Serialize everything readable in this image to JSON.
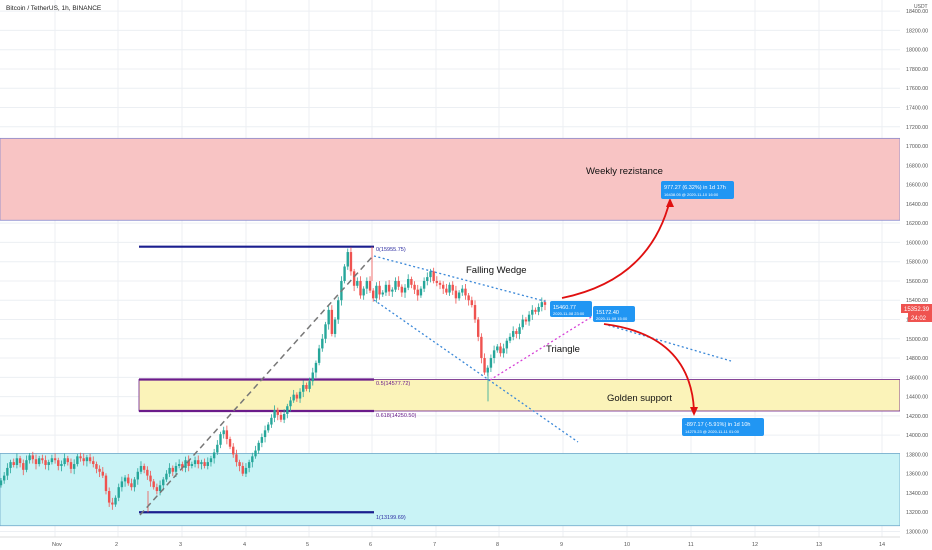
{
  "header": {
    "title": "Bitcoin / TetherUS, 1h, BINANCE"
  },
  "colors": {
    "up": "#26a69a",
    "down": "#ef5350",
    "grid": "#eceff3",
    "resistance_zone": "#f8c4c4",
    "support_zone": "#fbf3b9",
    "bottom_zone": "#c9f3f6",
    "fib_line": "#1b1f8f",
    "fib_purple": "#6a1b8a",
    "wedge": "#3b88d8",
    "triangle": "#d63ed6",
    "projection": "#e01010",
    "callout": "#2196f3",
    "dashed": "#777777",
    "price_tag": "#ef5350"
  },
  "x_axis": {
    "labels": [
      "Nov",
      "2",
      "3",
      "4",
      "5",
      "6",
      "7",
      "8",
      "9",
      "10",
      "11",
      "12",
      "13",
      "14"
    ]
  },
  "y_axis": {
    "unit": "USDT",
    "labels": [
      "18400.00",
      "18200.00",
      "18000.00",
      "17800.00",
      "17600.00",
      "17400.00",
      "17200.00",
      "17000.00",
      "16800.00",
      "16600.00",
      "16400.00",
      "16200.00",
      "16000.00",
      "15800.00",
      "15600.00",
      "15400.00",
      "15200.00",
      "15000.00",
      "14800.00",
      "14600.00",
      "14400.00",
      "14200.00",
      "14000.00",
      "13800.00",
      "13600.00",
      "13400.00",
      "13200.00",
      "13000.00"
    ],
    "current_price": "15352.39",
    "countdown": "24:02"
  },
  "annotations": {
    "weekly_resistance": "Weekly rezistance",
    "falling_wedge": "Falling Wedge",
    "triangle": "Triangle",
    "golden_support": "Golden support",
    "fib_0": "0(15955.75)",
    "fib_05": "0.5(14577.72)",
    "fib_0618": "0.618(14250.50)",
    "fib_1": "1(13199.69)"
  },
  "callouts": {
    "wedge_point": {
      "price": "15460.77",
      "date": "2020-11-08 23:00"
    },
    "triangle_point": {
      "price": "15172.40",
      "date": "2020-11-09 15:00"
    },
    "upside": {
      "line1": "977.27 (6.32%) in 1d 17h",
      "line2": "16438.05 @ 2020-11-10 16:00"
    },
    "downside": {
      "line1": "-897.17 (-5.91%) in 1d 10h",
      "line2": "14275.23 @ 2020-11-11 01:00"
    }
  },
  "chart_data": {
    "type": "candlestick",
    "title": "Bitcoin / TetherUS, 1h, BINANCE",
    "ylim": [
      13000,
      18500
    ],
    "grid": true,
    "zones": [
      {
        "label": "Weekly rezistance",
        "from": 16230,
        "to": 17080
      },
      {
        "label": "Golden support",
        "from": 14250.5,
        "to": 14577.72
      },
      {
        "label": "",
        "from": 13060,
        "to": 13810
      }
    ],
    "fib_levels": [
      {
        "ratio": "0",
        "price": 15955.75
      },
      {
        "ratio": "0.5",
        "price": 14577.72
      },
      {
        "ratio": "0.618",
        "price": 14250.5
      },
      {
        "ratio": "1",
        "price": 13199.69
      }
    ],
    "closes": [
      13530,
      13580,
      13660,
      13720,
      13690,
      13760,
      13710,
      13640,
      13740,
      13790,
      13750,
      13700,
      13760,
      13740,
      13690,
      13720,
      13760,
      13740,
      13680,
      13700,
      13760,
      13720,
      13650,
      13700,
      13780,
      13760,
      13730,
      13770,
      13730,
      13700,
      13650,
      13620,
      13580,
      13420,
      13300,
      13280,
      13350,
      13460,
      13520,
      13560,
      13500,
      13460,
      13540,
      13620,
      13680,
      13640,
      13580,
      13520,
      13460,
      13420,
      13480,
      13540,
      13600,
      13660,
      13620,
      13680,
      13700,
      13660,
      13740,
      13680,
      13700,
      13740,
      13700,
      13720,
      13680,
      13720,
      13760,
      13820,
      13900,
      14010,
      14050,
      13960,
      13880,
      13800,
      13720,
      13680,
      13600,
      13660,
      13720,
      13780,
      13840,
      13920,
      13980,
      14050,
      14110,
      14180,
      14260,
      14210,
      14160,
      14220,
      14300,
      14360,
      14420,
      14380,
      14450,
      14520,
      14480,
      14560,
      14650,
      14750,
      14900,
      15000,
      15150,
      15300,
      15050,
      15200,
      15400,
      15600,
      15750,
      15900,
      15700,
      15550,
      15600,
      15450,
      15520,
      15600,
      15500,
      15420,
      15550,
      15460,
      15480,
      15560,
      15490,
      15510,
      15600,
      15540,
      15480,
      15530,
      15620,
      15560,
      15510,
      15450,
      15520,
      15600,
      15640,
      15700,
      15600,
      15580,
      15560,
      15520,
      15480,
      15560,
      15500,
      15420,
      15480,
      15520,
      15450,
      15400,
      15350,
      15200,
      15020,
      14800,
      14650,
      14700,
      14800,
      14880,
      14920,
      14850,
      14900,
      14980,
      15020,
      15080,
      15050,
      15120,
      15200,
      15180,
      15250,
      15300,
      15280,
      15330,
      15380,
      15352
    ]
  }
}
